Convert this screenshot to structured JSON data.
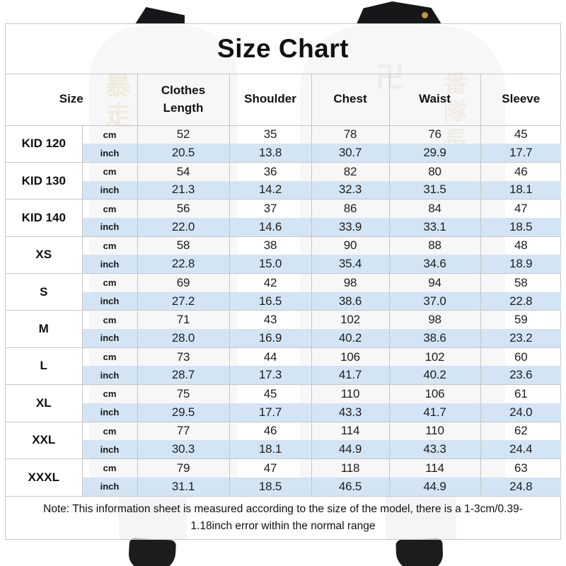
{
  "chart_data": {
    "type": "table",
    "title": "Size Chart",
    "columns": [
      "Size",
      "Clothes Length",
      "Shoulder",
      "Chest",
      "Waist",
      "Sleeve"
    ],
    "unit_rows": [
      "cm",
      "inch"
    ],
    "rows": [
      {
        "size": "KID 120",
        "cm": [
          "52",
          "35",
          "78",
          "76",
          "45"
        ],
        "inch": [
          "20.5",
          "13.8",
          "30.7",
          "29.9",
          "17.7"
        ]
      },
      {
        "size": "KID 130",
        "cm": [
          "54",
          "36",
          "82",
          "80",
          "46"
        ],
        "inch": [
          "21.3",
          "14.2",
          "32.3",
          "31.5",
          "18.1"
        ]
      },
      {
        "size": "KID 140",
        "cm": [
          "56",
          "37",
          "86",
          "84",
          "47"
        ],
        "inch": [
          "22.0",
          "14.6",
          "33.9",
          "33.1",
          "18.5"
        ]
      },
      {
        "size": "XS",
        "cm": [
          "58",
          "38",
          "90",
          "88",
          "48"
        ],
        "inch": [
          "22.8",
          "15.0",
          "35.4",
          "34.6",
          "18.9"
        ]
      },
      {
        "size": "S",
        "cm": [
          "69",
          "42",
          "98",
          "94",
          "58"
        ],
        "inch": [
          "27.2",
          "16.5",
          "38.6",
          "37.0",
          "22.8"
        ]
      },
      {
        "size": "M",
        "cm": [
          "71",
          "43",
          "102",
          "98",
          "59"
        ],
        "inch": [
          "28.0",
          "16.9",
          "40.2",
          "38.6",
          "23.2"
        ]
      },
      {
        "size": "L",
        "cm": [
          "73",
          "44",
          "106",
          "102",
          "60"
        ],
        "inch": [
          "28.7",
          "17.3",
          "41.7",
          "40.2",
          "23.6"
        ]
      },
      {
        "size": "XL",
        "cm": [
          "75",
          "45",
          "110",
          "106",
          "61"
        ],
        "inch": [
          "29.5",
          "17.7",
          "43.3",
          "41.7",
          "24.0"
        ]
      },
      {
        "size": "XXL",
        "cm": [
          "77",
          "46",
          "114",
          "110",
          "62"
        ],
        "inch": [
          "30.3",
          "18.1",
          "44.9",
          "43.3",
          "24.4"
        ]
      },
      {
        "size": "XXXL",
        "cm": [
          "79",
          "47",
          "118",
          "114",
          "63"
        ],
        "inch": [
          "31.1",
          "18.5",
          "46.5",
          "44.9",
          "24.8"
        ]
      }
    ],
    "note": "Note: This information sheet is measured according to the size of the model, there is a 1-3cm/0.39-1.18inch error within the normal range"
  },
  "background": {
    "left_jacket_kanji": "暴走",
    "right_jacket_kanji_large": "卍",
    "right_jacket_kanji_column": "番隊長"
  },
  "colors": {
    "inch_row_bg": "#d3e5f4",
    "table_border": "#c6c6c6",
    "accent_gold": "#c29a3e",
    "jacket_black": "#17171a"
  }
}
